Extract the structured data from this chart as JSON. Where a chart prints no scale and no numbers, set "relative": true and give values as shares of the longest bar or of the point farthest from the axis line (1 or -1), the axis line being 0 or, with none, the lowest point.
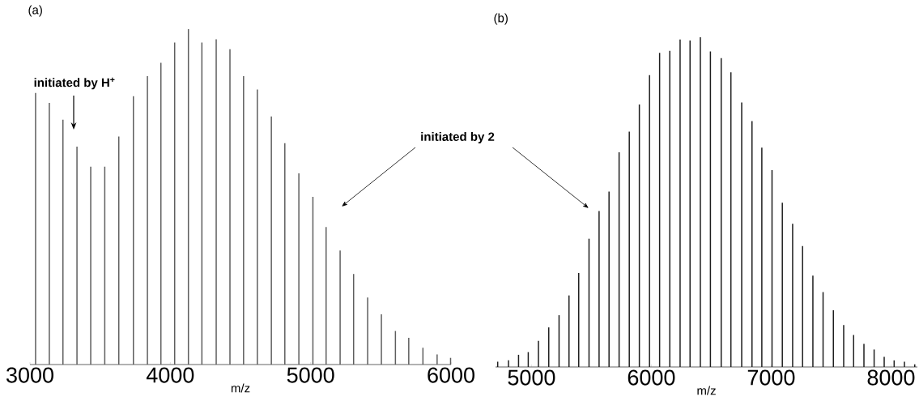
{
  "chart_data": [
    {
      "type": "bar",
      "title": "(a)",
      "xlabel": "m/z",
      "relative": true,
      "color": "#5e5e5e",
      "xlim": [
        3000,
        6000
      ],
      "xticks": [
        3000,
        4000,
        5000,
        6000
      ],
      "x": [
        3040,
        3138,
        3235,
        3335,
        3433,
        3533,
        3633,
        3737,
        3837,
        3933,
        4031,
        4129,
        4225,
        4327,
        4425,
        4522,
        4620,
        4720,
        4816,
        4916,
        5016,
        5110,
        5210,
        5306,
        5406,
        5504,
        5604,
        5699,
        5800,
        5901,
        5997
      ],
      "values": [
        0.81,
        0.78,
        0.73,
        0.65,
        0.59,
        0.59,
        0.68,
        0.8,
        0.86,
        0.9,
        0.96,
        1.0,
        0.96,
        0.97,
        0.94,
        0.86,
        0.82,
        0.74,
        0.66,
        0.57,
        0.5,
        0.41,
        0.34,
        0.27,
        0.2,
        0.15,
        0.1,
        0.08,
        0.05,
        0.03,
        0.02
      ],
      "annotations": [
        "initiated by H$^{+}$",
        "initiated by 2"
      ]
    },
    {
      "type": "bar",
      "title": "(b)",
      "xlabel": "m/z",
      "relative": true,
      "color": "#1e1e1e",
      "xlim": [
        4700,
        8220
      ],
      "xticks": [
        5000,
        6000,
        7000,
        8000
      ],
      "x": [
        4718,
        4808,
        4892,
        4973,
        5058,
        5144,
        5230,
        5313,
        5394,
        5480,
        5564,
        5647,
        5731,
        5816,
        5900,
        5985,
        6069,
        6154,
        6240,
        6323,
        6409,
        6493,
        6583,
        6664,
        6754,
        6840,
        6922,
        7007,
        7093,
        7179,
        7262,
        7348,
        7433,
        7519,
        7605,
        7688,
        7774,
        7859,
        7943,
        8026,
        8112,
        8198
      ],
      "values": [
        0.016,
        0.02,
        0.037,
        0.045,
        0.079,
        0.12,
        0.157,
        0.217,
        0.285,
        0.389,
        0.473,
        0.532,
        0.651,
        0.714,
        0.796,
        0.885,
        0.953,
        0.959,
        0.993,
        0.99,
        1.0,
        0.957,
        0.937,
        0.894,
        0.802,
        0.746,
        0.665,
        0.597,
        0.498,
        0.434,
        0.367,
        0.277,
        0.227,
        0.172,
        0.127,
        0.097,
        0.07,
        0.053,
        0.031,
        0.02,
        0.016,
        0.008
      ]
    }
  ]
}
